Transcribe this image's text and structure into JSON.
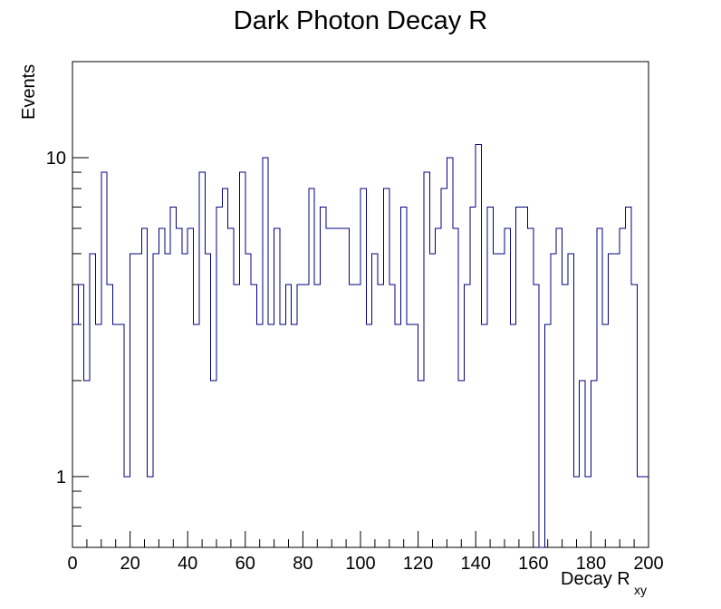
{
  "chart_data": {
    "type": "histogram",
    "title": "Dark Photon Decay R",
    "xlabel_main": "Decay R",
    "xlabel_sub": "xy",
    "ylabel": "Events",
    "x_range": [
      0,
      200
    ],
    "y_range": [
      0.6,
      20
    ],
    "y_scale": "log",
    "bin_width": 2,
    "x_ticks": [
      "0",
      "20",
      "40",
      "60",
      "80",
      "100",
      "120",
      "140",
      "160",
      "180",
      "200"
    ],
    "y_tick_labels": [
      "1",
      "10"
    ],
    "line_color": "#000080",
    "grid": false,
    "legend": "none",
    "bin_lower_edges": [
      0,
      2,
      4,
      6,
      8,
      10,
      12,
      14,
      16,
      18,
      20,
      22,
      24,
      26,
      28,
      30,
      32,
      34,
      36,
      38,
      40,
      42,
      44,
      46,
      48,
      50,
      52,
      54,
      56,
      58,
      60,
      62,
      64,
      66,
      68,
      70,
      72,
      74,
      76,
      78,
      80,
      82,
      84,
      86,
      88,
      90,
      92,
      94,
      96,
      98,
      100,
      102,
      104,
      106,
      108,
      110,
      112,
      114,
      116,
      118,
      120,
      122,
      124,
      126,
      128,
      130,
      132,
      134,
      136,
      138,
      140,
      142,
      144,
      146,
      148,
      150,
      152,
      154,
      156,
      158,
      160,
      162,
      164,
      166,
      168,
      170,
      172,
      174,
      176,
      178,
      180,
      182,
      184,
      186,
      188,
      190,
      192,
      194,
      196,
      198
    ],
    "values": [
      3,
      4,
      2,
      5,
      3,
      9,
      4,
      3,
      3,
      1,
      5,
      5,
      6,
      1,
      5,
      6,
      5,
      7,
      6,
      5,
      6,
      3,
      9,
      5,
      2,
      7,
      8,
      6,
      4,
      9,
      5,
      4,
      3,
      10,
      3,
      6,
      3,
      4,
      3,
      4,
      4,
      8,
      4,
      7,
      6,
      6,
      6,
      6,
      4,
      4,
      8,
      3,
      5,
      4,
      8,
      4,
      3,
      7,
      3,
      3,
      2,
      9,
      5,
      6,
      8,
      10,
      6,
      2,
      4,
      7,
      11,
      3,
      7,
      5,
      5,
      6,
      3,
      7,
      7,
      6,
      4,
      0,
      3,
      5,
      6,
      4,
      5,
      1,
      2,
      1,
      2,
      6,
      3,
      5,
      5,
      6,
      7,
      4,
      1,
      1
    ]
  }
}
